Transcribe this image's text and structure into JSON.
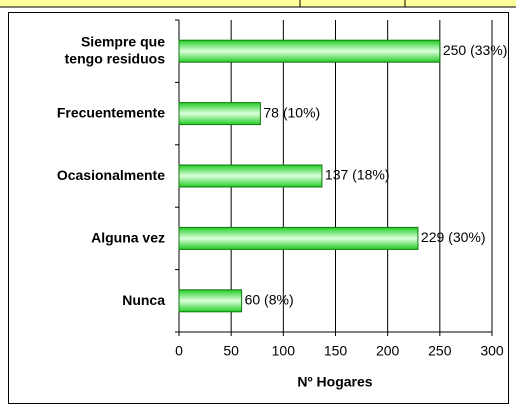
{
  "chart_data": {
    "type": "bar",
    "orientation": "horizontal",
    "categories": [
      "Siempre que\ntengo residuos",
      "Frecuentemente",
      "Ocasionalmente",
      "Alguna vez",
      "Nunca"
    ],
    "values": [
      250,
      78,
      137,
      229,
      60
    ],
    "value_labels": [
      "250 (33%)",
      "78 (10%)",
      "137 (18%)",
      "229 (30%)",
      "60 (8%)"
    ],
    "color": "#33dd33",
    "xlabel": "Nº Hogares",
    "xlim": [
      0,
      300
    ],
    "xticks": [
      0,
      50,
      100,
      150,
      200,
      250,
      300
    ],
    "grid": true
  }
}
